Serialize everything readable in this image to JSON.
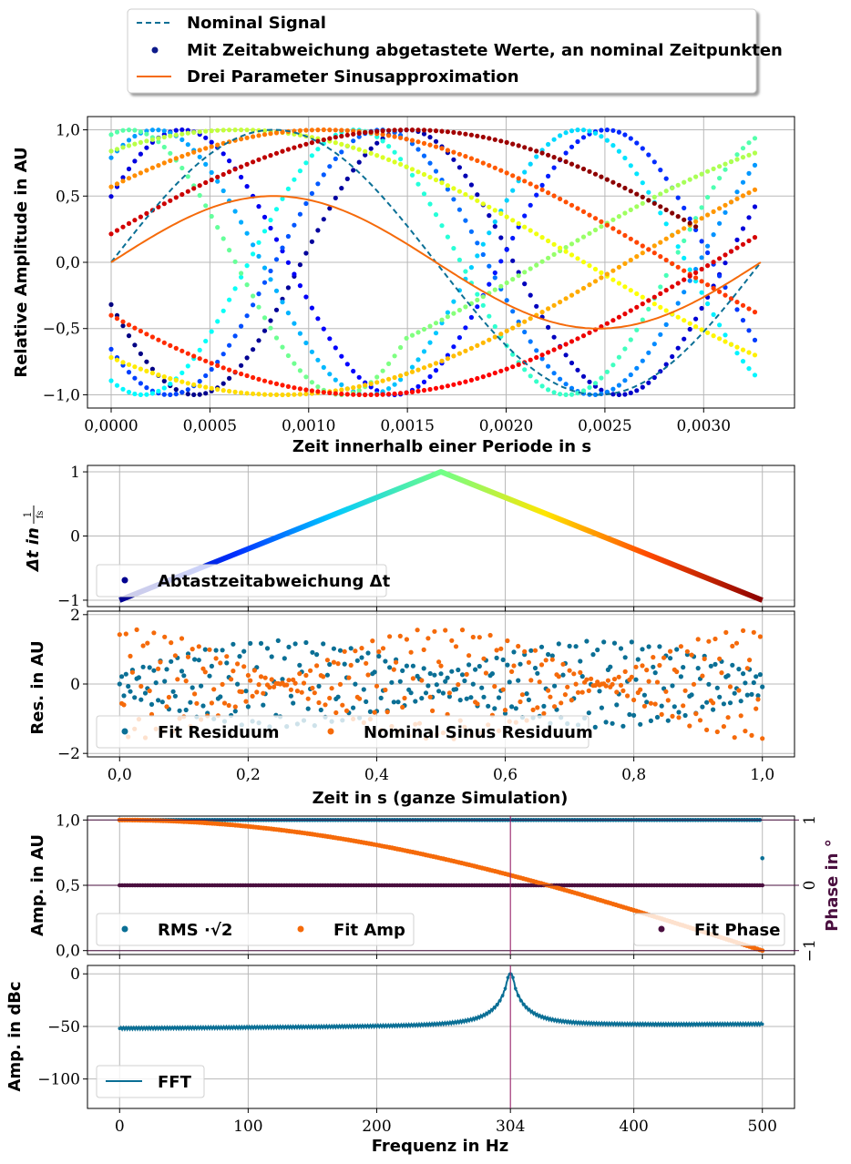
{
  "colors": {
    "nominal": "#0a6f95",
    "fit": "#f56a0a",
    "phase": "#4a0f3f",
    "marker_304": "#9c1d6b",
    "fft": "#0a6f95",
    "rms": "#0a6f95",
    "fit_amp": "#f56a0a"
  },
  "legend_top": {
    "nominal_signal": "Nominal Signal",
    "sampled_values": "Mit Zeitabweichung abgetastete Werte, an nominal Zeitpunkten",
    "sine_fit": "Drei Parameter Sinusapproximation"
  },
  "chart_data": [
    {
      "type": "scatter",
      "panel": "signal",
      "ylabel": "Relative Amplitude in AU",
      "xlabel": "Zeit innerhalb einer Periode in s",
      "xlim": [
        -0.00012,
        0.00346
      ],
      "ylim": [
        -1.1,
        1.1
      ],
      "x_ticks": [
        0,
        0.0005,
        0.001,
        0.0015,
        0.002,
        0.0025,
        0.003
      ],
      "x_tick_labels": [
        "0,0000",
        "0,0005",
        "0,0010",
        "0,0015",
        "0,0020",
        "0,0025",
        "0,0030"
      ],
      "y_ticks": [
        -1,
        -0.5,
        0,
        0.5,
        1
      ],
      "y_tick_labels": [
        "−1,0",
        "−0,5",
        "0,0",
        "0,5",
        "1,0"
      ],
      "period_s": 0.003289,
      "series": [
        {
          "name": "Nominal Signal",
          "kind": "line",
          "amplitude": 1.0
        },
        {
          "name": "Drei Parameter Sinusapproximation",
          "kind": "line",
          "amplitude": 0.5
        },
        {
          "name": "Mit Zeitabweichung abgetastete Werte, an nominal Zeitpunkten",
          "kind": "scatter",
          "value_range": [
            -1,
            1
          ]
        }
      ],
      "grid": true
    },
    {
      "type": "line",
      "panel": "deviation",
      "ylabel": "Δt in 1/fs",
      "xlim": [
        -0.05,
        1.05
      ],
      "ylim": [
        -1.1,
        1.1
      ],
      "y_ticks": [
        -1,
        0,
        1
      ],
      "y_tick_labels": [
        "−1",
        "0",
        "1"
      ],
      "x": [
        0,
        0.5,
        1
      ],
      "y": [
        -1,
        1,
        -1
      ],
      "legend": "Abtastzeitabweichung Δt",
      "legend_loc": "lower left",
      "grid": true
    },
    {
      "type": "scatter",
      "panel": "residuals",
      "ylabel": "Res. in AU",
      "xlabel": "Zeit in s (ganze Simulation)",
      "xlim": [
        -0.05,
        1.05
      ],
      "ylim": [
        -2.1,
        2.1
      ],
      "x_ticks": [
        0,
        0.2,
        0.4,
        0.6,
        0.8,
        1.0
      ],
      "x_tick_labels": [
        "0,0",
        "0,2",
        "0,4",
        "0,6",
        "0,8",
        "1,0"
      ],
      "y_ticks": [
        -2,
        0,
        2
      ],
      "y_tick_labels": [
        "−2",
        "0",
        "2"
      ],
      "series": [
        {
          "name": "Fit Residuum",
          "envelope_min": 0.3,
          "envelope_max": 1.25,
          "envelope_at_x": [
            0.25,
            0.5
          ]
        },
        {
          "name": "Nominal Sinus Residuum",
          "envelope_min": 0.0,
          "envelope_max": 1.6,
          "zero_at_x": [
            0.25,
            0.75
          ],
          "max_at_x": [
            0,
            0.5,
            1
          ]
        }
      ],
      "legend_loc": "lower left",
      "grid": true
    },
    {
      "type": "scatter",
      "panel": "amplitude",
      "ylabel": "Amp. in AU",
      "y2label": "Phase in °",
      "xlim": [
        -25,
        525
      ],
      "ylim": [
        -0.03,
        1.03
      ],
      "y2lim": [
        -1.06,
        1.06
      ],
      "y_ticks": [
        0,
        0.5,
        1.0
      ],
      "y_tick_labels": [
        "0,0",
        "0,5",
        "1,0"
      ],
      "y2_ticks": [
        -1,
        0,
        1
      ],
      "y2_tick_labels": [
        "−1",
        "0",
        "1"
      ],
      "series": [
        {
          "name": "RMS ·√2",
          "x_range": [
            0,
            500
          ],
          "value": 1.0,
          "last_point": [
            500,
            0.707
          ]
        },
        {
          "name": "Fit Amp",
          "x_range": [
            0,
            500
          ],
          "shape": "cos(pi*f/1000)",
          "at_304": 0.5
        },
        {
          "name": "Fit Phase",
          "x_range": [
            0,
            500
          ],
          "value": 0
        }
      ],
      "grid": true
    },
    {
      "type": "line",
      "panel": "fft",
      "ylabel": "Amp. in dBc",
      "xlabel": "Frequenz in Hz",
      "xlim": [
        -25,
        525
      ],
      "ylim": [
        -128,
        8
      ],
      "x_ticks": [
        0,
        100,
        200,
        304,
        400,
        500
      ],
      "x_tick_labels": [
        "0",
        "100",
        "200",
        "304",
        "400",
        "500"
      ],
      "highlight_tick": "304",
      "y_ticks": [
        -100,
        -50,
        0
      ],
      "y_tick_labels": [
        "−100",
        "−50",
        "0"
      ],
      "series": [
        {
          "name": "FFT",
          "peak_x": 304,
          "peak_y": 0,
          "floor_at_0": -52,
          "floor_at_500": -48
        }
      ],
      "legend_loc": "lower left",
      "grid": true
    }
  ],
  "labels": {
    "p1_ylabel": "Relative Amplitude in AU",
    "p1_xlabel": "Zeit innerhalb einer Periode in s",
    "p2_ylabel_prefix": "Δt in",
    "p2_ylabel_frac_num": "1",
    "p2_ylabel_frac_den": "fs",
    "p2_legend": "Abtastzeitabweichung Δt",
    "p3_ylabel": "Res. in AU",
    "p3_xlabel": "Zeit in s (ganze Simulation)",
    "p3_legend_fit": "Fit Residuum",
    "p3_legend_nominal": "Nominal Sinus Residuum",
    "p4_ylabel": "Amp. in AU",
    "p4_y2label": "Phase in °",
    "p4_legend_rms": "RMS ·√2",
    "p4_legend_fitamp": "Fit Amp",
    "p4_legend_phase": "Fit Phase",
    "p5_ylabel": "Amp. in dBc",
    "p5_xlabel": "Frequenz in Hz",
    "p5_legend": "FFT"
  }
}
